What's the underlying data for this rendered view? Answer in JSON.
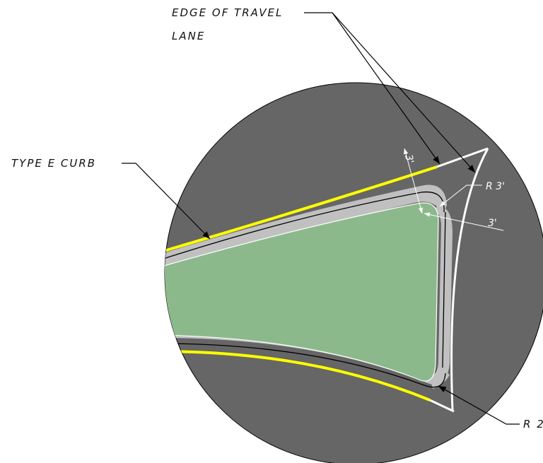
{
  "labels": {
    "edge_of_travel_lane_line1": "EDGE OF TRAVEL",
    "edge_of_travel_lane_line2": "LANE",
    "type_e_curb": "TYPE E CURB",
    "radius_top": "R 3'",
    "radius_bottom": "R 2",
    "dim_top": "3'",
    "dim_side": "3'"
  },
  "colors": {
    "pavement": "#666666",
    "island_fill": "#8cb98c",
    "curb_band": "#c0c0c0",
    "travel_lane_line": "#ffff00",
    "edge_line": "#ffffff",
    "leader": "#000000"
  }
}
